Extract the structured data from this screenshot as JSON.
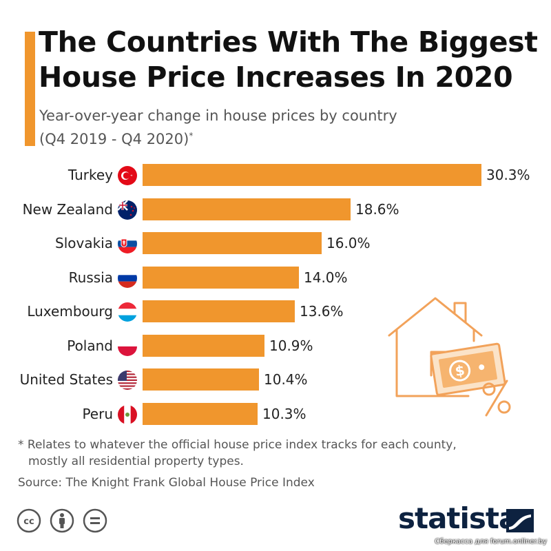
{
  "header": {
    "title_line1": "The Countries With The Biggest",
    "title_line2": "House Price Increases In 2020",
    "subtitle_line1": "Year-over-year change in house prices by country",
    "subtitle_line2": "(Q4 2019 - Q4 2020)",
    "subtitle_mark": "*"
  },
  "chart_data": {
    "type": "bar",
    "orientation": "horizontal",
    "title": "The Countries With The Biggest House Price Increases In 2020",
    "subtitle": "Year-over-year change in house prices by country (Q4 2019 - Q4 2020)*",
    "categories": [
      "Turkey",
      "New Zealand",
      "Slovakia",
      "Russia",
      "Luxembourg",
      "Poland",
      "United States",
      "Peru"
    ],
    "values": [
      30.3,
      18.6,
      16.0,
      14.0,
      13.6,
      10.9,
      10.4,
      10.3
    ],
    "value_labels": [
      "30.3%",
      "18.6%",
      "16.0%",
      "14.0%",
      "13.6%",
      "10.9%",
      "10.4%",
      "10.3%"
    ],
    "unit": "%",
    "xlim": [
      0,
      30.3
    ],
    "bar_color": "#f0962d",
    "grid": false,
    "legend": "none"
  },
  "footnote": {
    "line1": "* Relates to whatever the official house price index tracks for each county,",
    "line2": "mostly all residential property types."
  },
  "source": "Source: The Knight Frank Global House Price Index",
  "brand": {
    "name": "statista",
    "color": "#0d2240"
  },
  "watermark": "Сберкасса для forum.onliner.by",
  "colors": {
    "accent": "#f0962d",
    "icon_stroke": "#f2a25a",
    "icon_fill": "#fbe3c8"
  }
}
